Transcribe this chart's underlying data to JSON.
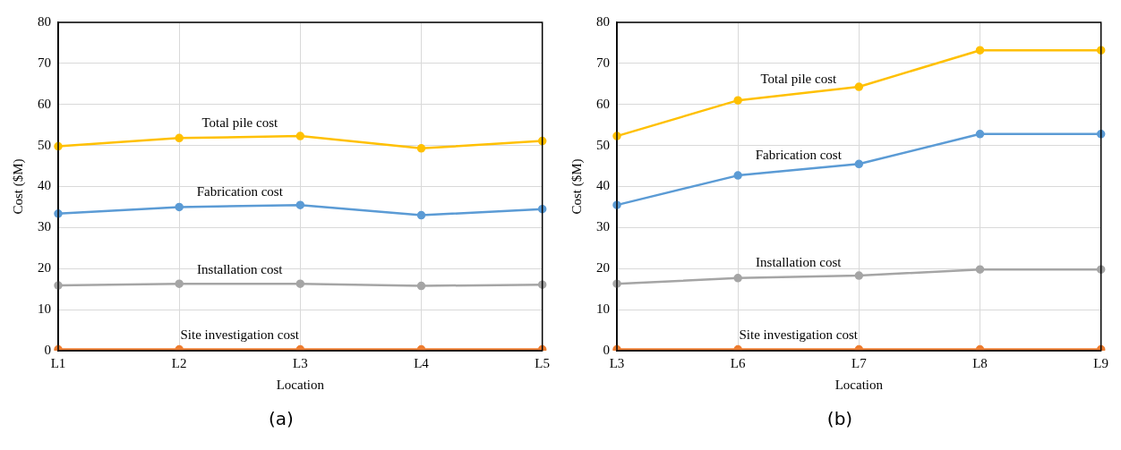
{
  "chart_data": [
    {
      "type": "line",
      "xlabel": "Location",
      "ylabel": "Cost ($M)",
      "annotations": [
        "(a)"
      ],
      "categories": [
        "L1",
        "L2",
        "L3",
        "L4",
        "L5"
      ],
      "ylim": [
        0,
        80
      ],
      "yticks": [
        0,
        10,
        20,
        30,
        40,
        50,
        60,
        70,
        80
      ],
      "grid": true,
      "legend": false,
      "marker": "circle",
      "line_style": "solid",
      "series": [
        {
          "name": "Total pile cost",
          "color": "#ffc000",
          "values": [
            49.8,
            51.8,
            52.3,
            49.3,
            51.1
          ]
        },
        {
          "name": "Fabrication cost",
          "color": "#5b9bd5",
          "values": [
            33.4,
            35.0,
            35.5,
            33.0,
            34.5
          ]
        },
        {
          "name": "Installation cost",
          "color": "#a5a5a5",
          "values": [
            15.9,
            16.3,
            16.3,
            15.8,
            16.1
          ]
        },
        {
          "name": "Site investigation cost",
          "color": "#ed7d31",
          "values": [
            0.3,
            0.3,
            0.3,
            0.3,
            0.3
          ]
        }
      ]
    },
    {
      "type": "line",
      "xlabel": "Location",
      "ylabel": "Cost ($M)",
      "annotations": [
        "(b)"
      ],
      "categories": [
        "L3",
        "L6",
        "L7",
        "L8",
        "L9"
      ],
      "ylim": [
        0,
        80
      ],
      "yticks": [
        0,
        10,
        20,
        30,
        40,
        50,
        60,
        70,
        80
      ],
      "grid": true,
      "legend": false,
      "marker": "circle",
      "line_style": "solid",
      "series": [
        {
          "name": "Total pile cost",
          "color": "#ffc000",
          "values": [
            52.3,
            61.0,
            64.3,
            73.2,
            73.2
          ]
        },
        {
          "name": "Fabrication cost",
          "color": "#5b9bd5",
          "values": [
            35.5,
            42.7,
            45.5,
            52.8,
            52.8
          ]
        },
        {
          "name": "Installation cost",
          "color": "#a5a5a5",
          "values": [
            16.3,
            17.7,
            18.3,
            19.8,
            19.8
          ]
        },
        {
          "name": "Site investigation cost",
          "color": "#ed7d31",
          "values": [
            0.3,
            0.3,
            0.3,
            0.3,
            0.3
          ]
        }
      ]
    }
  ]
}
